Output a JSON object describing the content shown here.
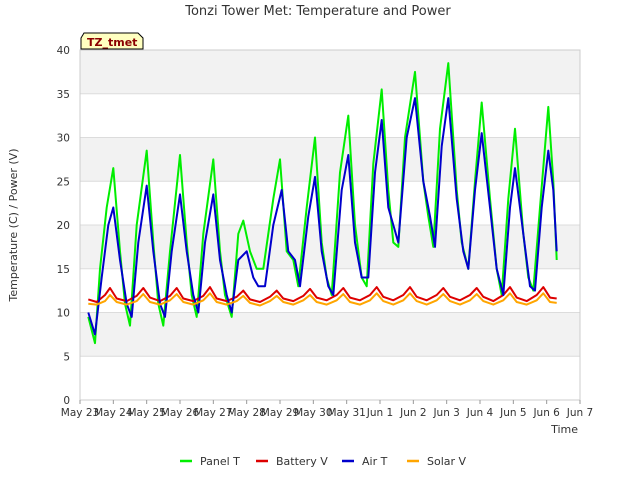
{
  "chart_data": {
    "type": "line",
    "title": "Tonzi Tower Met: Temperature and Power",
    "xlabel": "Time",
    "ylabel": "Temperature (C) / Power (V)",
    "tag": "TZ_tmet",
    "ylim": [
      0,
      40
    ],
    "yticks": [
      0,
      5,
      10,
      15,
      20,
      25,
      30,
      35,
      40
    ],
    "xlim": [
      0,
      15
    ],
    "xticks": [
      {
        "x": 0,
        "label": "May 23"
      },
      {
        "x": 1,
        "label": "May 24"
      },
      {
        "x": 2,
        "label": "May 25"
      },
      {
        "x": 3,
        "label": "May 26"
      },
      {
        "x": 4,
        "label": "May 27"
      },
      {
        "x": 5,
        "label": "May 28"
      },
      {
        "x": 6,
        "label": "May 29"
      },
      {
        "x": 7,
        "label": "May 30"
      },
      {
        "x": 8,
        "label": "May 31"
      },
      {
        "x": 9,
        "label": "Jun 1"
      },
      {
        "x": 10,
        "label": "Jun 2"
      },
      {
        "x": 11,
        "label": "Jun 3"
      },
      {
        "x": 12,
        "label": "Jun 4"
      },
      {
        "x": 13,
        "label": "Jun 5"
      },
      {
        "x": 14,
        "label": "Jun 6"
      },
      {
        "x": 15,
        "label": "Jun 7"
      }
    ],
    "grid": "horizontal bands",
    "legend_position": "bottom",
    "series": [
      {
        "name": "Panel T",
        "color": "#00ee00",
        "points": [
          [
            0.25,
            9.5
          ],
          [
            0.45,
            6.5
          ],
          [
            0.6,
            15
          ],
          [
            0.8,
            22
          ],
          [
            1.0,
            26.5
          ],
          [
            1.2,
            17
          ],
          [
            1.35,
            11
          ],
          [
            1.5,
            8.5
          ],
          [
            1.7,
            20
          ],
          [
            2.0,
            28.5
          ],
          [
            2.2,
            18
          ],
          [
            2.35,
            11
          ],
          [
            2.5,
            8.5
          ],
          [
            2.7,
            17
          ],
          [
            3.0,
            28
          ],
          [
            3.2,
            18
          ],
          [
            3.35,
            12
          ],
          [
            3.5,
            9.5
          ],
          [
            3.7,
            19
          ],
          [
            4.0,
            27.5
          ],
          [
            4.2,
            17
          ],
          [
            4.35,
            12
          ],
          [
            4.55,
            9.5
          ],
          [
            4.75,
            19
          ],
          [
            4.9,
            20.5
          ],
          [
            5.1,
            17
          ],
          [
            5.3,
            15
          ],
          [
            5.5,
            15
          ],
          [
            5.8,
            23
          ],
          [
            6.0,
            27.5
          ],
          [
            6.2,
            17
          ],
          [
            6.4,
            16
          ],
          [
            6.55,
            13
          ],
          [
            6.8,
            22
          ],
          [
            7.05,
            30
          ],
          [
            7.25,
            18
          ],
          [
            7.4,
            14
          ],
          [
            7.55,
            12
          ],
          [
            7.8,
            26
          ],
          [
            8.05,
            32.5
          ],
          [
            8.25,
            20
          ],
          [
            8.45,
            14
          ],
          [
            8.6,
            13
          ],
          [
            8.8,
            27
          ],
          [
            9.05,
            35.5
          ],
          [
            9.25,
            24
          ],
          [
            9.4,
            18
          ],
          [
            9.55,
            17.5
          ],
          [
            9.75,
            30
          ],
          [
            10.05,
            37.5
          ],
          [
            10.3,
            25
          ],
          [
            10.45,
            21
          ],
          [
            10.6,
            17.5
          ],
          [
            10.8,
            31
          ],
          [
            11.05,
            38.5
          ],
          [
            11.3,
            24
          ],
          [
            11.45,
            18
          ],
          [
            11.65,
            15
          ],
          [
            11.85,
            25
          ],
          [
            12.05,
            34
          ],
          [
            12.3,
            23
          ],
          [
            12.5,
            15
          ],
          [
            12.65,
            12
          ],
          [
            12.85,
            23
          ],
          [
            13.05,
            31
          ],
          [
            13.3,
            19
          ],
          [
            13.45,
            14
          ],
          [
            13.6,
            12.5
          ],
          [
            13.8,
            22
          ],
          [
            14.05,
            33.5
          ],
          [
            14.2,
            25
          ],
          [
            14.3,
            16
          ]
        ]
      },
      {
        "name": "Battery V",
        "color": "#dd0000",
        "points": [
          [
            0.25,
            11.5
          ],
          [
            0.5,
            11.2
          ],
          [
            0.75,
            12
          ],
          [
            0.9,
            12.8
          ],
          [
            1.1,
            11.6
          ],
          [
            1.4,
            11.3
          ],
          [
            1.7,
            11.9
          ],
          [
            1.9,
            12.8
          ],
          [
            2.1,
            11.7
          ],
          [
            2.4,
            11.3
          ],
          [
            2.7,
            11.9
          ],
          [
            2.9,
            12.8
          ],
          [
            3.1,
            11.6
          ],
          [
            3.4,
            11.3
          ],
          [
            3.7,
            11.9
          ],
          [
            3.9,
            12.9
          ],
          [
            4.1,
            11.6
          ],
          [
            4.4,
            11.3
          ],
          [
            4.7,
            11.8
          ],
          [
            4.9,
            12.5
          ],
          [
            5.1,
            11.5
          ],
          [
            5.4,
            11.2
          ],
          [
            5.7,
            11.8
          ],
          [
            5.9,
            12.5
          ],
          [
            6.1,
            11.6
          ],
          [
            6.4,
            11.3
          ],
          [
            6.7,
            11.9
          ],
          [
            6.9,
            12.7
          ],
          [
            7.1,
            11.7
          ],
          [
            7.4,
            11.4
          ],
          [
            7.7,
            12
          ],
          [
            7.9,
            12.8
          ],
          [
            8.1,
            11.7
          ],
          [
            8.4,
            11.4
          ],
          [
            8.7,
            12
          ],
          [
            8.9,
            12.9
          ],
          [
            9.1,
            11.8
          ],
          [
            9.4,
            11.4
          ],
          [
            9.7,
            12
          ],
          [
            9.9,
            12.9
          ],
          [
            10.1,
            11.8
          ],
          [
            10.4,
            11.4
          ],
          [
            10.7,
            12
          ],
          [
            10.9,
            12.8
          ],
          [
            11.1,
            11.8
          ],
          [
            11.4,
            11.4
          ],
          [
            11.7,
            12
          ],
          [
            11.9,
            12.8
          ],
          [
            12.1,
            11.8
          ],
          [
            12.4,
            11.3
          ],
          [
            12.7,
            12
          ],
          [
            12.9,
            12.9
          ],
          [
            13.1,
            11.7
          ],
          [
            13.4,
            11.3
          ],
          [
            13.7,
            12
          ],
          [
            13.9,
            12.9
          ],
          [
            14.1,
            11.7
          ],
          [
            14.3,
            11.6
          ]
        ]
      },
      {
        "name": "Air T",
        "color": "#0000cc",
        "points": [
          [
            0.25,
            10
          ],
          [
            0.45,
            7.5
          ],
          [
            0.65,
            14
          ],
          [
            0.85,
            20
          ],
          [
            1.0,
            22
          ],
          [
            1.2,
            16
          ],
          [
            1.4,
            11
          ],
          [
            1.55,
            9.5
          ],
          [
            1.75,
            18
          ],
          [
            2.0,
            24.5
          ],
          [
            2.2,
            17
          ],
          [
            2.4,
            11
          ],
          [
            2.55,
            9.5
          ],
          [
            2.75,
            17
          ],
          [
            3.0,
            23.5
          ],
          [
            3.2,
            17
          ],
          [
            3.4,
            12
          ],
          [
            3.55,
            10
          ],
          [
            3.75,
            18
          ],
          [
            4.0,
            23.5
          ],
          [
            4.2,
            16
          ],
          [
            4.4,
            12
          ],
          [
            4.55,
            10
          ],
          [
            4.75,
            16
          ],
          [
            5.0,
            17
          ],
          [
            5.2,
            14
          ],
          [
            5.35,
            13
          ],
          [
            5.55,
            13
          ],
          [
            5.8,
            20
          ],
          [
            6.05,
            24
          ],
          [
            6.25,
            17
          ],
          [
            6.45,
            16
          ],
          [
            6.6,
            13
          ],
          [
            6.85,
            21
          ],
          [
            7.05,
            25.5
          ],
          [
            7.25,
            17
          ],
          [
            7.45,
            13
          ],
          [
            7.6,
            12
          ],
          [
            7.85,
            24
          ],
          [
            8.05,
            28
          ],
          [
            8.25,
            18
          ],
          [
            8.45,
            14
          ],
          [
            8.65,
            14
          ],
          [
            8.85,
            26
          ],
          [
            9.05,
            32
          ],
          [
            9.25,
            22
          ],
          [
            9.4,
            20
          ],
          [
            9.55,
            18
          ],
          [
            9.8,
            30
          ],
          [
            10.05,
            34.5
          ],
          [
            10.3,
            25
          ],
          [
            10.5,
            21
          ],
          [
            10.65,
            17.5
          ],
          [
            10.85,
            29
          ],
          [
            11.05,
            34.5
          ],
          [
            11.3,
            23
          ],
          [
            11.5,
            17
          ],
          [
            11.65,
            15
          ],
          [
            11.85,
            24
          ],
          [
            12.05,
            30.5
          ],
          [
            12.3,
            22
          ],
          [
            12.5,
            15
          ],
          [
            12.7,
            12
          ],
          [
            12.9,
            22
          ],
          [
            13.05,
            26.5
          ],
          [
            13.3,
            19
          ],
          [
            13.5,
            13
          ],
          [
            13.65,
            12.5
          ],
          [
            13.85,
            22
          ],
          [
            14.05,
            28.5
          ],
          [
            14.2,
            24
          ],
          [
            14.3,
            17
          ]
        ]
      },
      {
        "name": "Solar V",
        "color": "#ffa500",
        "points": [
          [
            0.25,
            11
          ],
          [
            0.5,
            10.9
          ],
          [
            0.75,
            11.3
          ],
          [
            0.9,
            12
          ],
          [
            1.1,
            11.2
          ],
          [
            1.4,
            10.9
          ],
          [
            1.7,
            11.3
          ],
          [
            1.9,
            12.1
          ],
          [
            2.1,
            11.2
          ],
          [
            2.4,
            10.9
          ],
          [
            2.7,
            11.4
          ],
          [
            2.9,
            12.1
          ],
          [
            3.1,
            11.2
          ],
          [
            3.4,
            10.9
          ],
          [
            3.7,
            11.4
          ],
          [
            3.9,
            12.2
          ],
          [
            4.1,
            11.2
          ],
          [
            4.4,
            10.9
          ],
          [
            4.7,
            11.3
          ],
          [
            4.9,
            11.9
          ],
          [
            5.1,
            11.1
          ],
          [
            5.4,
            10.8
          ],
          [
            5.7,
            11.3
          ],
          [
            5.9,
            11.9
          ],
          [
            6.1,
            11.2
          ],
          [
            6.4,
            10.9
          ],
          [
            6.7,
            11.4
          ],
          [
            6.9,
            12
          ],
          [
            7.1,
            11.2
          ],
          [
            7.4,
            10.9
          ],
          [
            7.7,
            11.4
          ],
          [
            7.9,
            12.1
          ],
          [
            8.1,
            11.2
          ],
          [
            8.4,
            10.9
          ],
          [
            8.7,
            11.4
          ],
          [
            8.9,
            12.2
          ],
          [
            9.1,
            11.3
          ],
          [
            9.4,
            10.9
          ],
          [
            9.7,
            11.4
          ],
          [
            9.9,
            12.2
          ],
          [
            10.1,
            11.3
          ],
          [
            10.4,
            10.9
          ],
          [
            10.7,
            11.4
          ],
          [
            10.9,
            12.1
          ],
          [
            11.1,
            11.3
          ],
          [
            11.4,
            10.9
          ],
          [
            11.7,
            11.4
          ],
          [
            11.9,
            12.1
          ],
          [
            12.1,
            11.3
          ],
          [
            12.4,
            10.9
          ],
          [
            12.7,
            11.4
          ],
          [
            12.9,
            12.2
          ],
          [
            13.1,
            11.2
          ],
          [
            13.4,
            10.9
          ],
          [
            13.7,
            11.4
          ],
          [
            13.9,
            12.2
          ],
          [
            14.1,
            11.2
          ],
          [
            14.3,
            11.1
          ]
        ]
      }
    ]
  }
}
